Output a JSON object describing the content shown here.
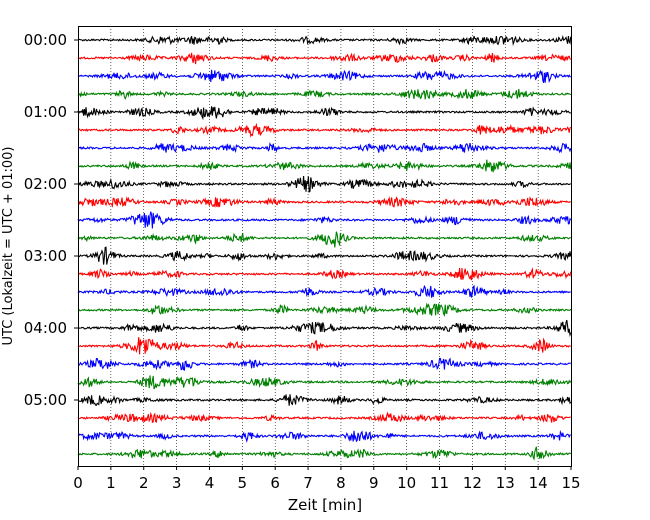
{
  "chart_data": {
    "type": "line",
    "title": "",
    "xlabel": "Zeit  [min]",
    "ylabel": "UTC (Lokalzeit = UTC + 01:00)",
    "xlim": [
      0,
      15
    ],
    "x_ticks": [
      "0",
      "1",
      "2",
      "3",
      "4",
      "5",
      "6",
      "7",
      "8",
      "9",
      "10",
      "11",
      "12",
      "13",
      "14",
      "15"
    ],
    "y_ticks": [
      "00:00",
      "01:00",
      "02:00",
      "03:00",
      "04:00",
      "05:00"
    ],
    "trace_interval_min": 15,
    "grid": "vertical dotted at each minute",
    "legend": "none",
    "series": [
      {
        "start": "00:00",
        "color": "#000000"
      },
      {
        "start": "00:15",
        "color": "#ff0000"
      },
      {
        "start": "00:30",
        "color": "#0000ff"
      },
      {
        "start": "00:45",
        "color": "#008000"
      },
      {
        "start": "01:00",
        "color": "#000000"
      },
      {
        "start": "01:15",
        "color": "#ff0000"
      },
      {
        "start": "01:30",
        "color": "#0000ff"
      },
      {
        "start": "01:45",
        "color": "#008000"
      },
      {
        "start": "02:00",
        "color": "#000000"
      },
      {
        "start": "02:15",
        "color": "#ff0000"
      },
      {
        "start": "02:30",
        "color": "#0000ff"
      },
      {
        "start": "02:45",
        "color": "#008000"
      },
      {
        "start": "03:00",
        "color": "#000000"
      },
      {
        "start": "03:15",
        "color": "#ff0000"
      },
      {
        "start": "03:30",
        "color": "#0000ff"
      },
      {
        "start": "03:45",
        "color": "#008000"
      },
      {
        "start": "04:00",
        "color": "#000000"
      },
      {
        "start": "04:15",
        "color": "#ff0000"
      },
      {
        "start": "04:30",
        "color": "#0000ff"
      },
      {
        "start": "04:45",
        "color": "#008000"
      },
      {
        "start": "05:00",
        "color": "#000000"
      },
      {
        "start": "05:15",
        "color": "#ff0000"
      },
      {
        "start": "05:30",
        "color": "#0000ff"
      },
      {
        "start": "05:45",
        "color": "#008000"
      }
    ]
  }
}
